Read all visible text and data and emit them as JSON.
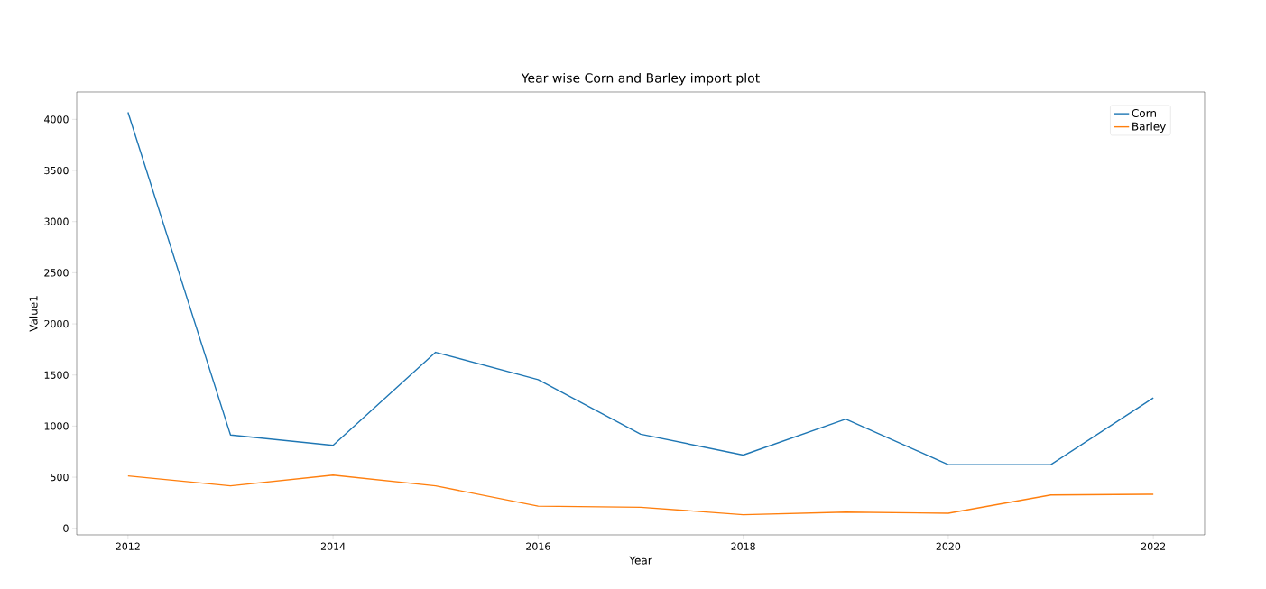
{
  "chart_data": {
    "type": "line",
    "title": "Year wise Corn and Barley import plot",
    "xlabel": "Year",
    "ylabel": "Value1",
    "x": [
      2012,
      2013,
      2014,
      2015,
      2016,
      2017,
      2018,
      2019,
      2020,
      2021,
      2022
    ],
    "series": [
      {
        "name": "Corn",
        "color": "#1f77b4",
        "values": [
          4070,
          913,
          812,
          1722,
          1454,
          921,
          717,
          1069,
          623,
          623,
          1276
        ]
      },
      {
        "name": "Barley",
        "color": "#ff7f0e",
        "values": [
          513,
          416,
          521,
          416,
          217,
          206,
          133,
          159,
          148,
          326,
          333
        ]
      }
    ],
    "xlim": [
      2011.5,
      2022.5
    ],
    "ylim": [
      -64,
      4268
    ],
    "xticks": [
      2012,
      2014,
      2016,
      2018,
      2020,
      2022
    ],
    "yticks": [
      0,
      500,
      1000,
      1500,
      2000,
      2500,
      3000,
      3500,
      4000
    ],
    "legend": "top right",
    "grid": false,
    "marker": "none",
    "line_style": "solid"
  }
}
